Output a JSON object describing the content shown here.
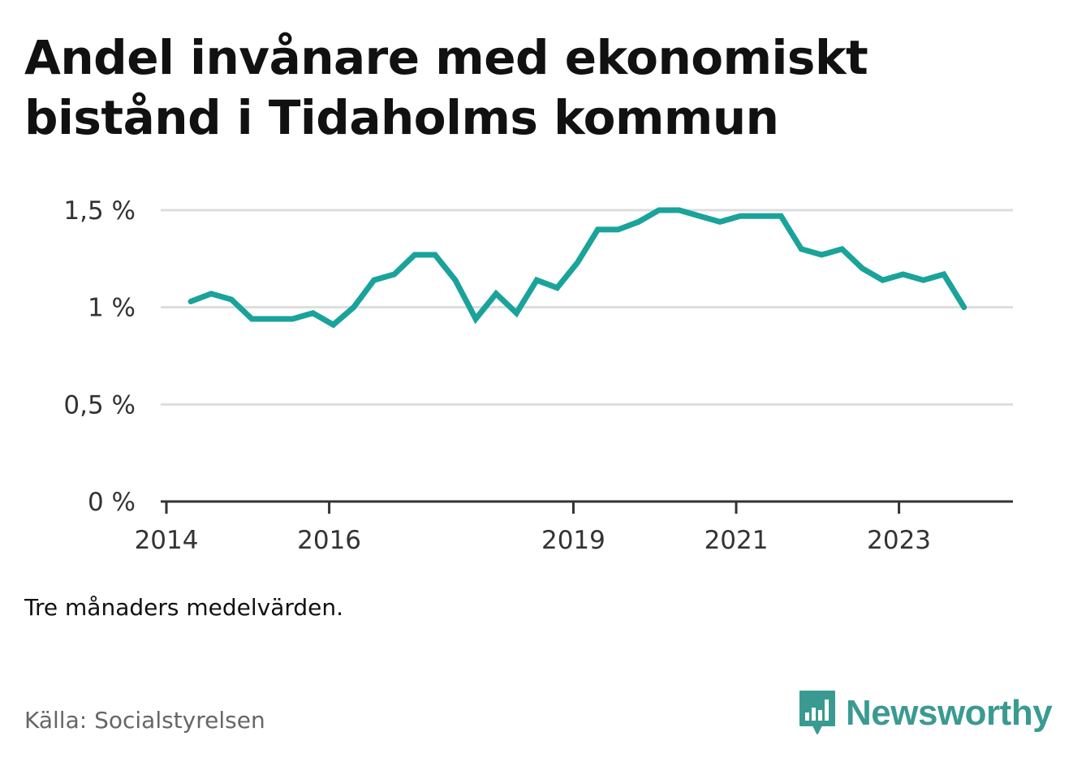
{
  "title": "Andel invånare med ekonomiskt bistånd i Tidaholms kommun",
  "note": "Tre månaders medelvärden.",
  "source": "Källa: Socialstyrelsen",
  "brand": {
    "name": "Newsworthy",
    "color": "#3a9a92",
    "icon": "bar-chart-speech-bubble-icon"
  },
  "chart_data": {
    "type": "line",
    "ylim": [
      0,
      1.5
    ],
    "yticks": [
      {
        "value": 0,
        "label": "0 %"
      },
      {
        "value": 0.5,
        "label": "0,5 %"
      },
      {
        "value": 1,
        "label": "1 %"
      },
      {
        "value": 1.5,
        "label": "1,5 %"
      }
    ],
    "xlim": [
      2013.93,
      2024.4
    ],
    "xticks": [
      {
        "value": 2014,
        "label": "2014"
      },
      {
        "value": 2016,
        "label": "2016"
      },
      {
        "value": 2019,
        "label": "2019"
      },
      {
        "value": 2021,
        "label": "2021"
      },
      {
        "value": 2023,
        "label": "2023"
      }
    ],
    "grid": true,
    "line_color": "#1aa39a",
    "series": [
      {
        "x": [
          2014.3,
          2014.55,
          2014.8,
          2015.05,
          2015.3,
          2015.55,
          2015.8,
          2016.05,
          2016.3,
          2016.55,
          2016.8,
          2017.05,
          2017.3,
          2017.55,
          2017.8,
          2018.05,
          2018.3,
          2018.55,
          2018.8,
          2019.05,
          2019.3,
          2019.55,
          2019.8,
          2020.05,
          2020.3,
          2020.55,
          2020.8,
          2021.05,
          2021.3,
          2021.55,
          2021.8,
          2022.05,
          2022.3,
          2022.55,
          2022.8,
          2023.05,
          2023.3,
          2023.55,
          2023.8
        ],
        "values": [
          1.03,
          1.07,
          1.04,
          0.94,
          0.94,
          0.94,
          0.97,
          0.91,
          1.0,
          1.14,
          1.17,
          1.27,
          1.27,
          1.14,
          0.94,
          1.07,
          0.97,
          1.14,
          1.1,
          1.23,
          1.4,
          1.4,
          1.44,
          1.5,
          1.5,
          1.47,
          1.44,
          1.47,
          1.47,
          1.47,
          1.3,
          1.27,
          1.3,
          1.2,
          1.14,
          1.17,
          1.14,
          1.17,
          1.0
        ]
      }
    ]
  }
}
